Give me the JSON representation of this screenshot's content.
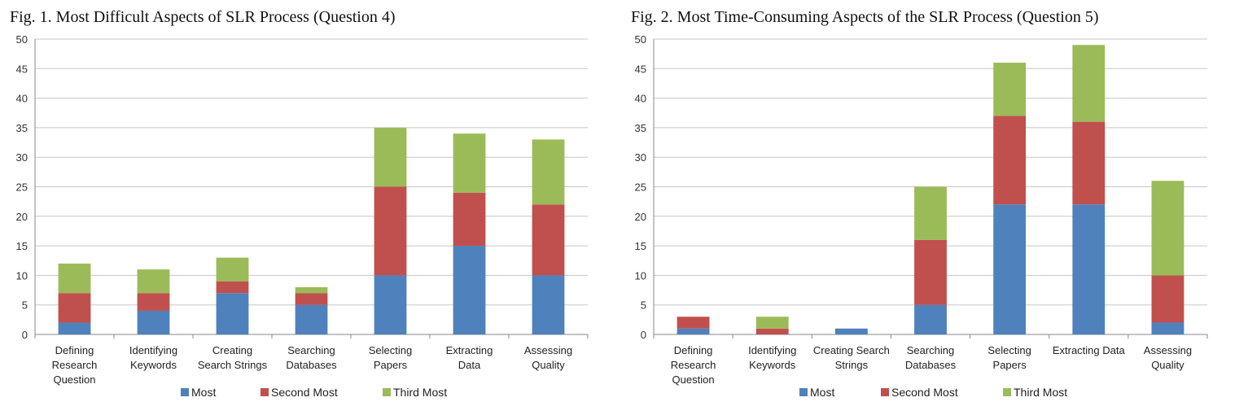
{
  "chart_data": [
    {
      "type": "bar",
      "stacked": true,
      "title": "Fig. 1.  Most Difficult Aspects of SLR Process (Question 4)",
      "categories": [
        "Defining Research Question",
        "Identifying Keywords",
        "Creating Search Strings",
        "Searching Databases",
        "Selecting Papers",
        "Extracting Data",
        "Assessing Quality"
      ],
      "category_lines": [
        [
          "Defining",
          "Research",
          "Question"
        ],
        [
          "Identifying",
          "Keywords"
        ],
        [
          "Creating",
          "Search Strings"
        ],
        [
          "Searching",
          "Databases"
        ],
        [
          "Selecting",
          "Papers"
        ],
        [
          "Extracting",
          "Data"
        ],
        [
          "Assessing",
          "Quality"
        ]
      ],
      "series": [
        {
          "name": "Most",
          "color": "#4f81bd",
          "values": [
            2,
            4,
            7,
            5,
            10,
            15,
            10
          ]
        },
        {
          "name": "Second Most",
          "color": "#c0504d",
          "values": [
            5,
            3,
            2,
            2,
            15,
            9,
            12
          ]
        },
        {
          "name": "Third Most",
          "color": "#9bbb59",
          "values": [
            5,
            4,
            4,
            1,
            10,
            10,
            11
          ]
        }
      ],
      "ylim": [
        0,
        50
      ],
      "yticks": [
        0,
        5,
        10,
        15,
        20,
        25,
        30,
        35,
        40,
        45,
        50
      ],
      "grid": true,
      "legend": "bottom"
    },
    {
      "type": "bar",
      "stacked": true,
      "title": "Fig. 2.  Most Time-Consuming Aspects of the SLR Process (Question 5)",
      "categories": [
        "Defining Research Question",
        "Identifying Keywords",
        "Creating Search Strings",
        "Searching Databases",
        "Selecting Papers",
        "Extracting Data",
        "Assessing Quality"
      ],
      "category_lines": [
        [
          "Defining",
          "Research",
          "Question"
        ],
        [
          "Identifying",
          "Keywords"
        ],
        [
          "Creating Search",
          "Strings"
        ],
        [
          "Searching",
          "Databases"
        ],
        [
          "Selecting",
          "Papers"
        ],
        [
          "Extracting Data"
        ],
        [
          "Assessing",
          "Quality"
        ]
      ],
      "series": [
        {
          "name": "Most",
          "color": "#4f81bd",
          "values": [
            1,
            0,
            1,
            5,
            22,
            22,
            2
          ]
        },
        {
          "name": "Second Most",
          "color": "#c0504d",
          "values": [
            2,
            1,
            0,
            11,
            15,
            14,
            8
          ]
        },
        {
          "name": "Third Most",
          "color": "#9bbb59",
          "values": [
            0,
            2,
            0,
            9,
            9,
            13,
            16
          ]
        }
      ],
      "ylim": [
        0,
        50
      ],
      "yticks": [
        0,
        5,
        10,
        15,
        20,
        25,
        30,
        35,
        40,
        45,
        50
      ],
      "grid": true,
      "legend": "bottom"
    }
  ]
}
